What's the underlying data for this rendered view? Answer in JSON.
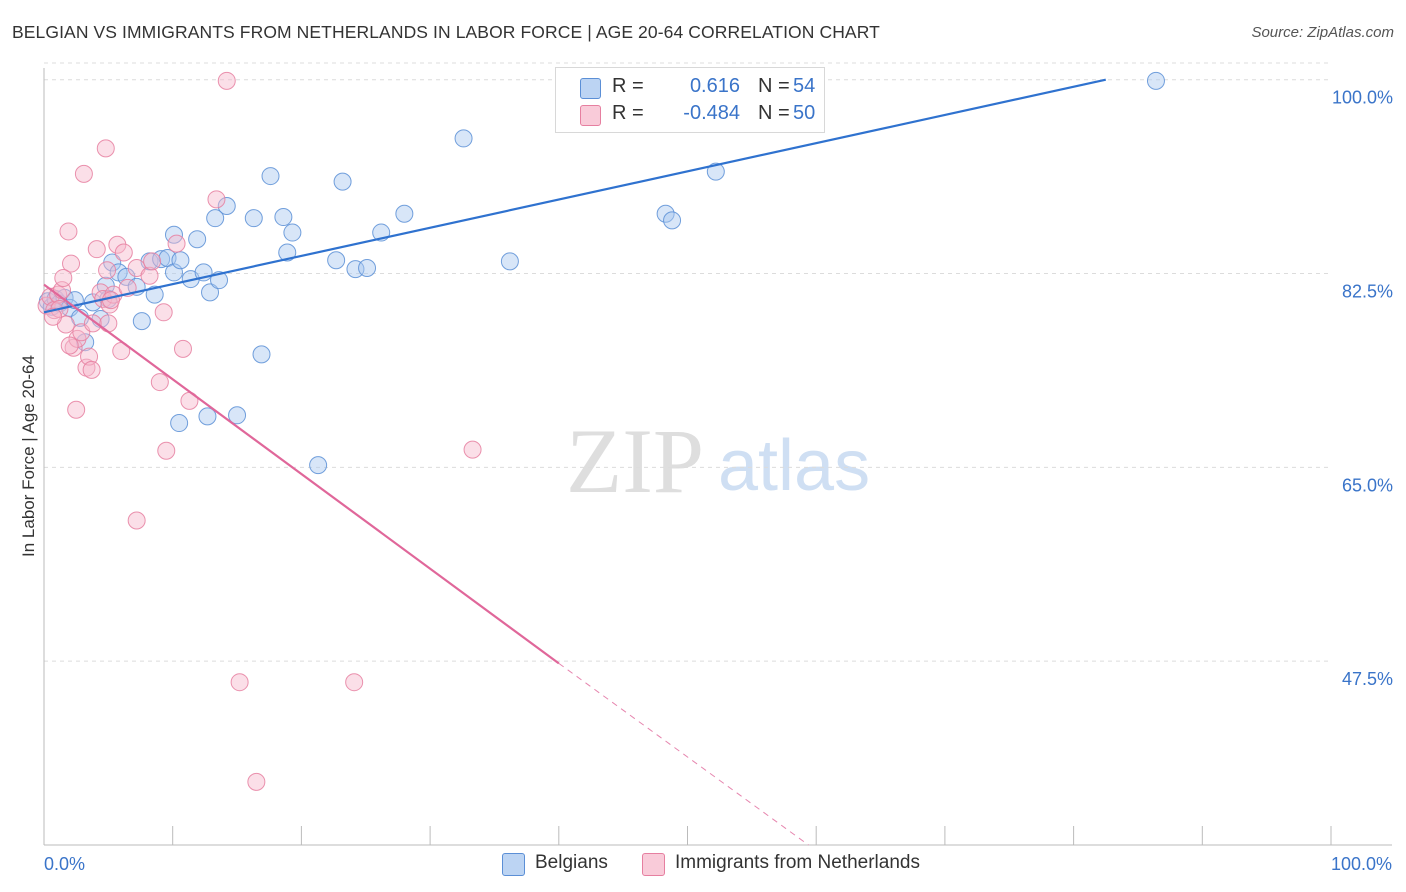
{
  "header": {
    "title": "BELGIAN VS IMMIGRANTS FROM NETHERLANDS IN LABOR FORCE | AGE 20-64 CORRELATION CHART",
    "source": "Source: ZipAtlas.com"
  },
  "watermark": {
    "zip": "ZIP",
    "atlas": "atlas"
  },
  "colors": {
    "blue_fill": "#a9c8f0",
    "blue_stroke": "#5b8fd6",
    "blue_line": "#2f72cf",
    "pink_fill": "#f6b8cc",
    "pink_stroke": "#e67fa0",
    "pink_line": "#e0679a",
    "tick_text": "#3a74c9",
    "grid": "#dcdcdc"
  },
  "stats_legend": {
    "rows": [
      {
        "series": "Belgians",
        "r_label": "R =",
        "r_value": "0.616",
        "n_label": "N =",
        "n_value": "54"
      },
      {
        "series": "Immigrants from Netherlands",
        "r_label": "R =",
        "r_value": "-0.484",
        "n_label": "N =",
        "n_value": "50"
      }
    ]
  },
  "bottom_legend": [
    "Belgians",
    "Immigrants from Netherlands"
  ],
  "chart_data": {
    "type": "scatter",
    "title": "BELGIAN VS IMMIGRANTS FROM NETHERLANDS IN LABOR FORCE | AGE 20-64 CORRELATION CHART",
    "xlabel": "",
    "ylabel": "In Labor Force | Age 20-64",
    "xlim": [
      0,
      100
    ],
    "ylim": [
      30.9,
      101.6
    ],
    "x_tick_labels": [
      "0.0%",
      "100.0%"
    ],
    "y_ticks": [
      47.5,
      65.0,
      82.5,
      100.0
    ],
    "y_tick_labels": [
      "47.5%",
      "65.0%",
      "82.5%",
      "100.0%"
    ],
    "grid": true,
    "legend_position": "top-center",
    "series": [
      {
        "name": "Belgians",
        "color": "#a9c8f0",
        "points": [
          [
            0.3,
            80.0
          ],
          [
            0.6,
            79.5
          ],
          [
            0.9,
            80.2
          ],
          [
            1.2,
            79.8
          ],
          [
            1.6,
            80.3
          ],
          [
            2.0,
            79.4
          ],
          [
            2.4,
            80.1
          ],
          [
            2.8,
            78.5
          ],
          [
            3.2,
            76.3
          ],
          [
            3.8,
            79.9
          ],
          [
            4.4,
            78.4
          ],
          [
            4.8,
            81.4
          ],
          [
            5.3,
            83.5
          ],
          [
            5.8,
            82.6
          ],
          [
            6.4,
            82.2
          ],
          [
            7.2,
            81.3
          ],
          [
            7.6,
            78.2
          ],
          [
            8.2,
            83.6
          ],
          [
            8.6,
            80.6
          ],
          [
            9.1,
            83.8
          ],
          [
            9.6,
            83.9
          ],
          [
            10.1,
            82.6
          ],
          [
            10.6,
            83.7
          ],
          [
            10.1,
            86.0
          ],
          [
            11.4,
            82.0
          ],
          [
            11.9,
            85.6
          ],
          [
            12.4,
            82.6
          ],
          [
            12.9,
            80.8
          ],
          [
            13.3,
            87.5
          ],
          [
            13.6,
            81.9
          ],
          [
            14.2,
            88.6
          ],
          [
            16.3,
            87.5
          ],
          [
            16.9,
            75.2
          ],
          [
            17.6,
            91.3
          ],
          [
            18.6,
            87.6
          ],
          [
            18.9,
            84.4
          ],
          [
            19.3,
            86.2
          ],
          [
            22.7,
            83.7
          ],
          [
            23.2,
            90.8
          ],
          [
            24.2,
            82.9
          ],
          [
            25.1,
            83.0
          ],
          [
            26.2,
            86.2
          ],
          [
            28.0,
            87.9
          ],
          [
            32.6,
            94.7
          ],
          [
            36.2,
            83.6
          ],
          [
            48.3,
            87.9
          ],
          [
            48.8,
            87.3
          ],
          [
            52.2,
            91.7
          ],
          [
            86.4,
            99.9
          ],
          [
            10.5,
            69.0
          ],
          [
            12.7,
            69.6
          ],
          [
            15.0,
            69.7
          ],
          [
            21.3,
            65.2
          ],
          [
            5.0,
            80.2
          ]
        ]
      },
      {
        "name": "Immigrants from Netherlands",
        "color": "#f6b8cc",
        "points": [
          [
            0.2,
            79.6
          ],
          [
            0.5,
            80.4
          ],
          [
            0.8,
            79.2
          ],
          [
            1.1,
            80.6
          ],
          [
            1.4,
            81.0
          ],
          [
            1.7,
            77.9
          ],
          [
            1.9,
            86.3
          ],
          [
            2.1,
            83.4
          ],
          [
            2.3,
            75.8
          ],
          [
            2.6,
            76.6
          ],
          [
            2.9,
            77.2
          ],
          [
            3.1,
            91.5
          ],
          [
            3.3,
            74.0
          ],
          [
            3.5,
            75.0
          ],
          [
            3.8,
            78.0
          ],
          [
            4.1,
            84.7
          ],
          [
            4.4,
            80.8
          ],
          [
            4.6,
            80.2
          ],
          [
            4.9,
            82.8
          ],
          [
            5.1,
            79.7
          ],
          [
            5.4,
            80.6
          ],
          [
            5.7,
            85.1
          ],
          [
            6.0,
            75.5
          ],
          [
            6.2,
            84.4
          ],
          [
            6.5,
            81.2
          ],
          [
            7.2,
            83.0
          ],
          [
            8.2,
            82.3
          ],
          [
            8.4,
            83.6
          ],
          [
            9.0,
            72.7
          ],
          [
            9.3,
            79.0
          ],
          [
            9.5,
            66.5
          ],
          [
            10.3,
            85.2
          ],
          [
            10.8,
            75.7
          ],
          [
            11.3,
            71.0
          ],
          [
            13.4,
            89.2
          ],
          [
            14.2,
            99.9
          ],
          [
            15.2,
            45.6
          ],
          [
            16.5,
            36.6
          ],
          [
            24.1,
            45.6
          ],
          [
            33.3,
            66.6
          ],
          [
            7.2,
            60.2
          ],
          [
            4.8,
            93.8
          ],
          [
            2.0,
            76.0
          ],
          [
            2.5,
            70.2
          ],
          [
            3.7,
            73.8
          ],
          [
            1.2,
            79.3
          ],
          [
            0.7,
            78.6
          ],
          [
            1.5,
            82.1
          ],
          [
            5.2,
            80.1
          ],
          [
            5.0,
            78.0
          ]
        ]
      }
    ],
    "trend_lines": [
      {
        "series": "Belgians",
        "style": "solid",
        "from": [
          0,
          79.0
        ],
        "to": [
          82.5,
          100.0
        ]
      },
      {
        "series": "Immigrants from Netherlands",
        "style": "solid",
        "from": [
          0,
          81.5
        ],
        "to": [
          40.0,
          47.3
        ]
      },
      {
        "series": "Immigrants from Netherlands",
        "style": "dashed",
        "from": [
          40.0,
          47.3
        ],
        "to": [
          59.4,
          30.9
        ]
      }
    ]
  }
}
